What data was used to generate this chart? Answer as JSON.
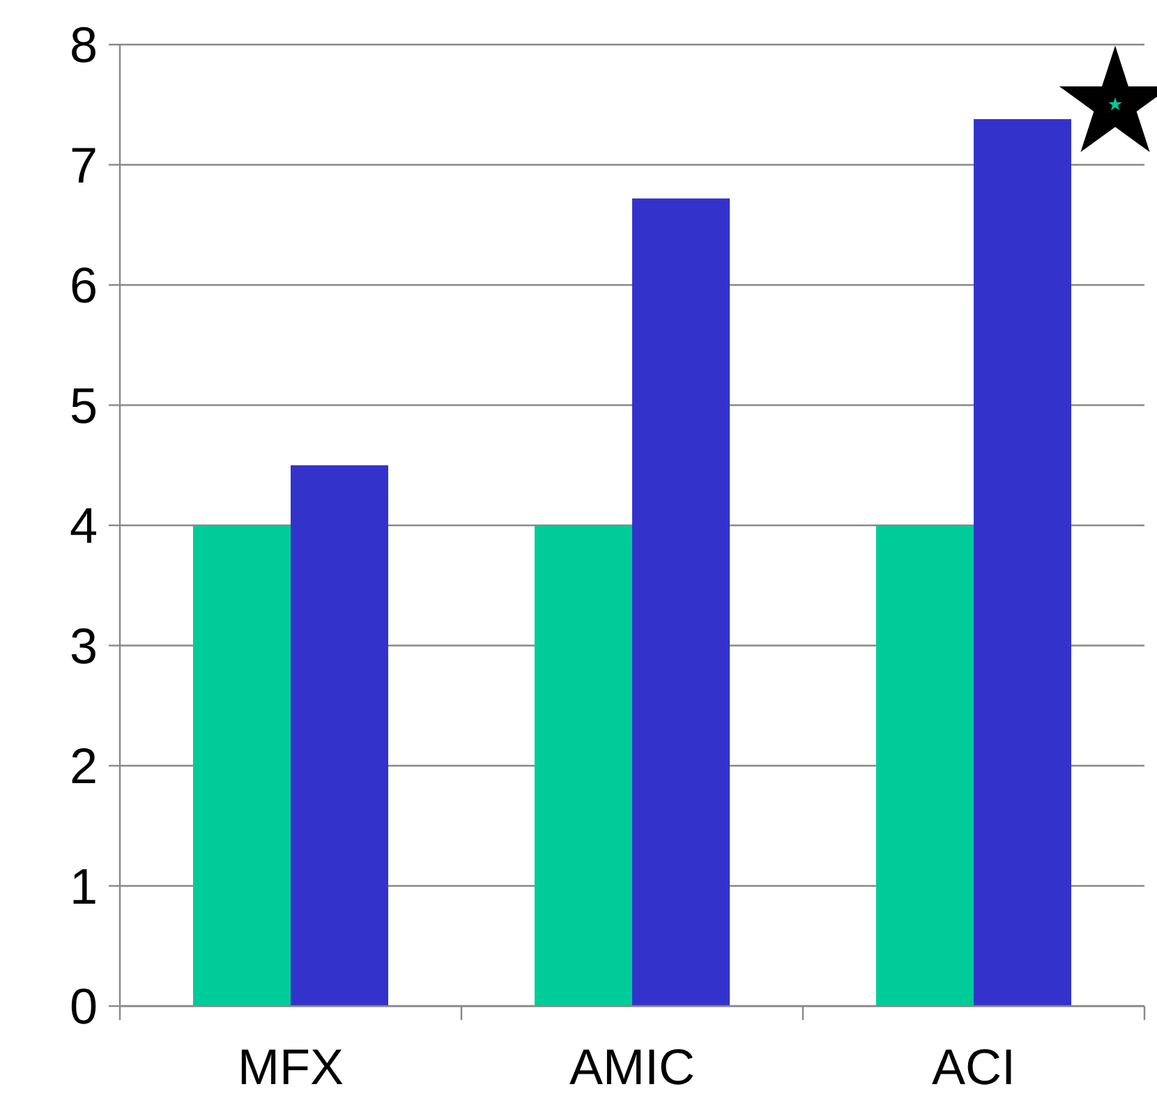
{
  "chart_data": {
    "type": "bar",
    "categories": [
      "MFX",
      "AMIC",
      "ACI"
    ],
    "series": [
      {
        "color": "#00cc99",
        "values": [
          4,
          4,
          4
        ]
      },
      {
        "color": "#3333cc",
        "values": [
          4.5,
          6.72,
          7.38
        ]
      }
    ],
    "ylim": [
      0,
      8
    ],
    "yticks": [
      0,
      1,
      2,
      3,
      4,
      5,
      6,
      7,
      8
    ],
    "grid": "y"
  }
}
